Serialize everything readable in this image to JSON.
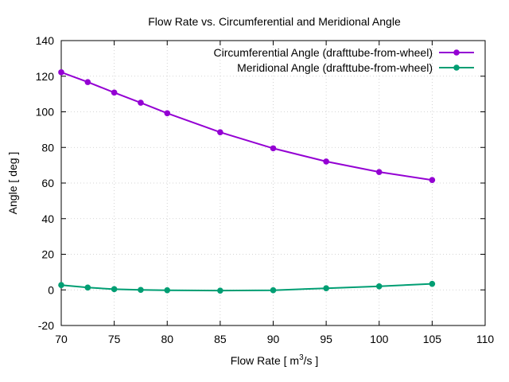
{
  "chart_data": {
    "type": "line",
    "title": "Flow Rate vs. Circumferential and Meridional Angle",
    "xlabel_main": "Flow Rate [ m",
    "xlabel_sup": "3",
    "xlabel_end": "/s ]",
    "ylabel": "Angle [ deg ]",
    "xlim": [
      70,
      110
    ],
    "ylim": [
      -20,
      140
    ],
    "xticks": [
      70,
      75,
      80,
      85,
      90,
      95,
      100,
      105,
      110
    ],
    "yticks": [
      -20,
      0,
      20,
      40,
      60,
      80,
      100,
      120,
      140
    ],
    "grid": true,
    "legend_position": "top-right",
    "series": [
      {
        "name": "Circumferential Angle (drafttube-from-wheel)",
        "color": "#9400d3",
        "x": [
          70,
          72.5,
          75,
          77.5,
          80,
          85,
          90,
          95,
          100,
          105
        ],
        "y": [
          122.2,
          116.7,
          110.8,
          105.1,
          99.2,
          88.5,
          79.5,
          72.1,
          66.2,
          61.7
        ]
      },
      {
        "name": "Meridional Angle (drafttube-from-wheel)",
        "color": "#009e73",
        "x": [
          70,
          72.5,
          75,
          77.5,
          80,
          85,
          90,
          95,
          100,
          105
        ],
        "y": [
          2.7,
          1.3,
          0.4,
          0.0,
          -0.2,
          -0.4,
          -0.2,
          0.9,
          2.0,
          3.4
        ]
      }
    ]
  }
}
